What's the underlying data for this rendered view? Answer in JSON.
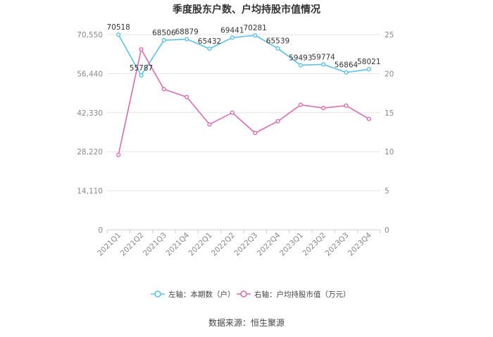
{
  "chart_data": {
    "type": "line",
    "title": "季度股东户数、户均持股市值情况",
    "categories": [
      "2021Q1",
      "2021Q2",
      "2021Q3",
      "2021Q4",
      "2022Q1",
      "2022Q2",
      "2022Q3",
      "2022Q4",
      "2023Q1",
      "2023Q2",
      "2023Q3",
      "2023Q4"
    ],
    "left_axis": {
      "ylim": [
        0,
        70550
      ],
      "ticks": [
        0,
        14110,
        28220,
        42330,
        56440,
        70550
      ],
      "tick_labels": [
        "0",
        "14,110",
        "28,220",
        "42,330",
        "56,440",
        "70,550"
      ]
    },
    "right_axis": {
      "ylim": [
        0,
        25
      ],
      "ticks": [
        0,
        5,
        10,
        15,
        20,
        25
      ],
      "tick_labels": [
        "0",
        "5",
        "10",
        "15",
        "20",
        "25"
      ]
    },
    "series": [
      {
        "name": "左轴：本期数（户）",
        "axis": "left",
        "color": "#5bc0eb",
        "values": [
          70518,
          55787,
          68506,
          68879,
          65432,
          69441,
          70281,
          65539,
          59493,
          59774,
          56864,
          58021
        ],
        "labels": [
          "70518",
          "55787",
          "68506",
          "68879",
          "65432",
          "69441",
          "70281",
          "65539",
          "59493",
          "59774",
          "56864",
          "58021"
        ]
      },
      {
        "name": "右轴：户均持股市值（万元）",
        "axis": "right",
        "color": "#d96cb0",
        "values": [
          9.6,
          23.1,
          18.0,
          17.0,
          13.5,
          15.0,
          12.4,
          13.9,
          16.0,
          15.6,
          15.9,
          14.2
        ]
      }
    ],
    "legend_position": "bottom",
    "grid": true
  },
  "footer": {
    "source": "数据来源：恒生聚源"
  }
}
